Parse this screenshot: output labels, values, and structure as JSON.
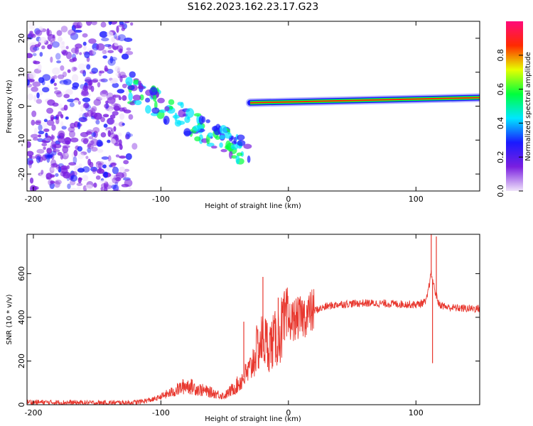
{
  "title": "S162.2023.162.23.17.G23",
  "chart_data": [
    {
      "type": "heatmap",
      "xlabel": "Height of straight line (km)",
      "ylabel": "Frequency (Hz)",
      "xlim": [
        -205,
        150
      ],
      "ylim": [
        -25,
        25
      ],
      "xticks": [
        -200,
        -100,
        0,
        100
      ],
      "yticks": [
        -20,
        -10,
        0,
        10,
        20
      ],
      "colorbar": {
        "label": "Normalized spectral amplitude",
        "range": [
          0,
          1
        ],
        "ticks": [
          "0.0",
          "0.2",
          "0.4",
          "0.6",
          "0.8"
        ],
        "colors": [
          "#f0e4fa",
          "#7a1fe0",
          "#1a1aff",
          "#00e6ff",
          "#00ff3c",
          "#e6ff00",
          "#ff2a00",
          "#ff0a7a"
        ]
      },
      "features": [
        {
          "segment": "noise",
          "x_from": -205,
          "x_to": -120,
          "freq_from": -25,
          "freq_to": 25,
          "amplitude": 0.15
        },
        {
          "segment": "drifting",
          "x_from": -125,
          "x_to": -30,
          "freq_from": 5,
          "freq_to": -14,
          "amplitude": 0.35
        },
        {
          "segment": "carrier",
          "x_from": -30,
          "x_to": 150,
          "freq_from": 1,
          "freq_to": 2.5,
          "amplitude": 0.9
        }
      ]
    },
    {
      "type": "line",
      "xlabel": "Height of straight line (km)",
      "ylabel": "SNR (10 * v/v)",
      "xlim": [
        -205,
        150
      ],
      "ylim": [
        0,
        780
      ],
      "xticks": [
        -200,
        -100,
        0,
        100
      ],
      "yticks": [
        0,
        200,
        400,
        600
      ],
      "color": "#e8382f",
      "series": [
        {
          "name": "SNR",
          "x": [
            -205,
            -180,
            -150,
            -120,
            -105,
            -90,
            -80,
            -70,
            -60,
            -50,
            -40,
            -30,
            -25,
            -20,
            -15,
            -10,
            -5,
            0,
            10,
            20,
            30,
            40,
            60,
            80,
            100,
            108,
            112,
            115,
            118,
            125,
            140,
            150
          ],
          "y": [
            12,
            10,
            8,
            10,
            25,
            60,
            90,
            70,
            55,
            40,
            90,
            160,
            250,
            300,
            270,
            300,
            350,
            380,
            400,
            430,
            450,
            460,
            465,
            462,
            458,
            470,
            600,
            520,
            460,
            445,
            440,
            440
          ]
        }
      ],
      "spikes": [
        {
          "x": -35,
          "y": 380
        },
        {
          "x": -20,
          "y": 585
        },
        {
          "x": -8,
          "y": 490
        },
        {
          "x": 112,
          "y": 780
        },
        {
          "x": 116,
          "y": 770
        },
        {
          "x": 113,
          "y": 190
        }
      ]
    }
  ]
}
